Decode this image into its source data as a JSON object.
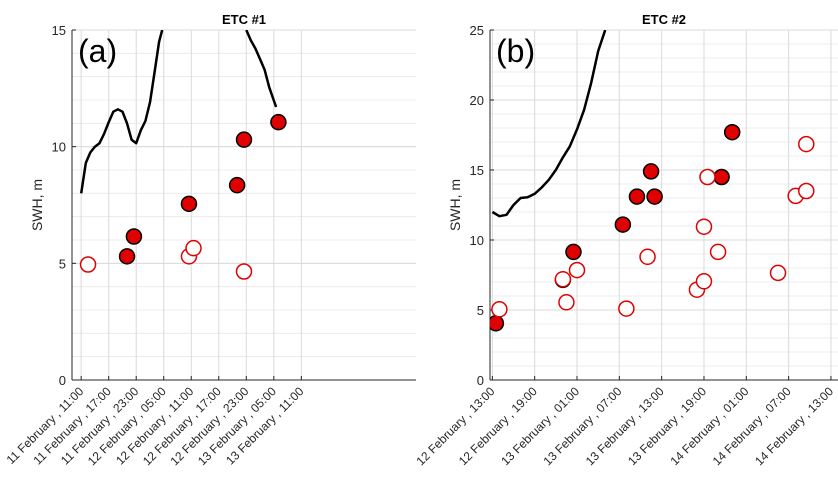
{
  "chart_data": [
    {
      "type": "scatter",
      "title": "ETC #1",
      "panel_label": "(a)",
      "ylabel": "SWH, m",
      "xlabel": "",
      "ylim": [
        0,
        15
      ],
      "yticks": [
        0,
        5,
        10,
        15
      ],
      "xlim": [
        "2010-02-11 09:00",
        "2010-02-14 12:00"
      ],
      "xticks": [
        {
          "t": "2010-02-11 11:00",
          "label": "11 February , 11:00"
        },
        {
          "t": "2010-02-11 17:00",
          "label": "11 February , 17:00"
        },
        {
          "t": "2010-02-11 23:00",
          "label": "11 February , 23:00"
        },
        {
          "t": "2010-02-12 05:00",
          "label": "12 February , 05:00"
        },
        {
          "t": "2010-02-12 11:00",
          "label": "12 February , 11:00"
        },
        {
          "t": "2010-02-12 17:00",
          "label": "12 February , 17:00"
        },
        {
          "t": "2010-02-12 23:00",
          "label": "12 February , 23:00"
        },
        {
          "t": "2010-02-13 05:00",
          "label": "13 February , 05:00"
        },
        {
          "t": "2010-02-13 11:00",
          "label": "13 February , 11:00"
        }
      ],
      "grid": true,
      "series": [
        {
          "style": "line",
          "color": "#000000",
          "points": [
            [
              "2010-02-11 11:00",
              8.0
            ],
            [
              "2010-02-11 12:00",
              9.3
            ],
            [
              "2010-02-11 13:00",
              9.75
            ],
            [
              "2010-02-11 14:00",
              10.0
            ],
            [
              "2010-02-11 15:00",
              10.15
            ],
            [
              "2010-02-11 16:00",
              10.55
            ],
            [
              "2010-02-11 17:00",
              11.05
            ],
            [
              "2010-02-11 18:00",
              11.5
            ],
            [
              "2010-02-11 19:00",
              11.6
            ],
            [
              "2010-02-11 20:00",
              11.5
            ],
            [
              "2010-02-11 21:00",
              11.0
            ],
            [
              "2010-02-11 22:00",
              10.3
            ],
            [
              "2010-02-11 23:00",
              10.15
            ],
            [
              "2010-02-12 00:00",
              10.7
            ],
            [
              "2010-02-12 01:00",
              11.1
            ],
            [
              "2010-02-12 02:00",
              11.9
            ],
            [
              "2010-02-12 03:00",
              13.2
            ],
            [
              "2010-02-12 04:00",
              14.5
            ],
            [
              "2010-02-12 04:40",
              15.0
            ]
          ]
        },
        {
          "style": "line",
          "color": "#000000",
          "points": [
            [
              "2010-02-12 23:00",
              15.0
            ],
            [
              "2010-02-13 00:00",
              14.55
            ],
            [
              "2010-02-13 01:00",
              14.2
            ],
            [
              "2010-02-13 02:00",
              13.75
            ],
            [
              "2010-02-13 03:00",
              13.3
            ],
            [
              "2010-02-13 04:00",
              12.55
            ],
            [
              "2010-02-13 05:30",
              11.7
            ]
          ]
        },
        {
          "style": "filled",
          "color": "#e00000",
          "points": [
            [
              "2010-02-11 21:00",
              5.3
            ],
            [
              "2010-02-11 22:30",
              6.15
            ],
            [
              "2010-02-12 10:30",
              7.55
            ],
            [
              "2010-02-12 21:00",
              8.35
            ],
            [
              "2010-02-12 22:30",
              10.3
            ],
            [
              "2010-02-13 06:00",
              11.05
            ]
          ]
        },
        {
          "style": "open",
          "color": "#e00000",
          "points": [
            [
              "2010-02-11 12:30",
              4.95
            ],
            [
              "2010-02-12 10:30",
              5.3
            ],
            [
              "2010-02-12 11:30",
              5.65
            ],
            [
              "2010-02-12 22:30",
              4.65
            ]
          ]
        }
      ]
    },
    {
      "type": "scatter",
      "title": "ETC #2",
      "panel_label": "(b)",
      "ylabel": "SWH, m",
      "xlabel": "",
      "ylim": [
        0,
        25
      ],
      "yticks": [
        0,
        5,
        10,
        15,
        20,
        25
      ],
      "xlim": [
        "2010-02-12 12:40",
        "2010-02-14 14:00"
      ],
      "xticks": [
        {
          "t": "2010-02-12 13:00",
          "label": "12 February , 13:00"
        },
        {
          "t": "2010-02-12 19:00",
          "label": "12 February , 19:00"
        },
        {
          "t": "2010-02-13 01:00",
          "label": "13 February , 01:00"
        },
        {
          "t": "2010-02-13 07:00",
          "label": "13 February , 07:00"
        },
        {
          "t": "2010-02-13 13:00",
          "label": "13 February , 13:00"
        },
        {
          "t": "2010-02-13 19:00",
          "label": "13 February , 19:00"
        },
        {
          "t": "2010-02-14 01:00",
          "label": "14 February , 01:00"
        },
        {
          "t": "2010-02-14 07:00",
          "label": "14 February , 07:00"
        },
        {
          "t": "2010-02-14 13:00",
          "label": "14 February , 13:00"
        }
      ],
      "grid": true,
      "series": [
        {
          "style": "line",
          "color": "#000000",
          "points": [
            [
              "2010-02-12 13:00",
              12.0
            ],
            [
              "2010-02-12 14:00",
              11.7
            ],
            [
              "2010-02-12 15:00",
              11.8
            ],
            [
              "2010-02-12 16:00",
              12.5
            ],
            [
              "2010-02-12 17:00",
              13.0
            ],
            [
              "2010-02-12 18:00",
              13.05
            ],
            [
              "2010-02-12 19:00",
              13.3
            ],
            [
              "2010-02-12 20:00",
              13.75
            ],
            [
              "2010-02-12 21:00",
              14.3
            ],
            [
              "2010-02-12 22:00",
              15.0
            ],
            [
              "2010-02-12 23:00",
              15.9
            ],
            [
              "2010-02-13 00:00",
              16.7
            ],
            [
              "2010-02-13 01:00",
              17.9
            ],
            [
              "2010-02-13 02:00",
              19.3
            ],
            [
              "2010-02-13 03:00",
              21.2
            ],
            [
              "2010-02-13 04:00",
              23.5
            ],
            [
              "2010-02-13 05:00",
              25.0
            ]
          ]
        },
        {
          "style": "filled",
          "color": "#e00000",
          "points": [
            [
              "2010-02-12 13:30",
              4.05
            ],
            [
              "2010-02-12 23:00",
              7.15
            ],
            [
              "2010-02-13 00:30",
              9.15
            ],
            [
              "2010-02-13 07:30",
              11.1
            ],
            [
              "2010-02-13 09:30",
              13.1
            ],
            [
              "2010-02-13 11:30",
              14.9
            ],
            [
              "2010-02-13 12:00",
              13.1
            ],
            [
              "2010-02-13 21:30",
              14.5
            ],
            [
              "2010-02-13 23:00",
              17.7
            ]
          ]
        },
        {
          "style": "open",
          "color": "#e00000",
          "points": [
            [
              "2010-02-12 14:00",
              5.05
            ],
            [
              "2010-02-12 23:00",
              7.2
            ],
            [
              "2010-02-12 23:30",
              5.55
            ],
            [
              "2010-02-13 01:00",
              7.85
            ],
            [
              "2010-02-13 08:00",
              5.1
            ],
            [
              "2010-02-13 11:00",
              8.8
            ],
            [
              "2010-02-13 18:00",
              6.45
            ],
            [
              "2010-02-13 19:00",
              7.05
            ],
            [
              "2010-02-13 19:30",
              14.5
            ],
            [
              "2010-02-13 19:00",
              10.95
            ],
            [
              "2010-02-13 21:00",
              9.15
            ],
            [
              "2010-02-14 05:30",
              7.65
            ],
            [
              "2010-02-14 08:00",
              13.15
            ],
            [
              "2010-02-14 09:30",
              13.5
            ],
            [
              "2010-02-14 09:30",
              16.85
            ]
          ]
        }
      ]
    }
  ]
}
